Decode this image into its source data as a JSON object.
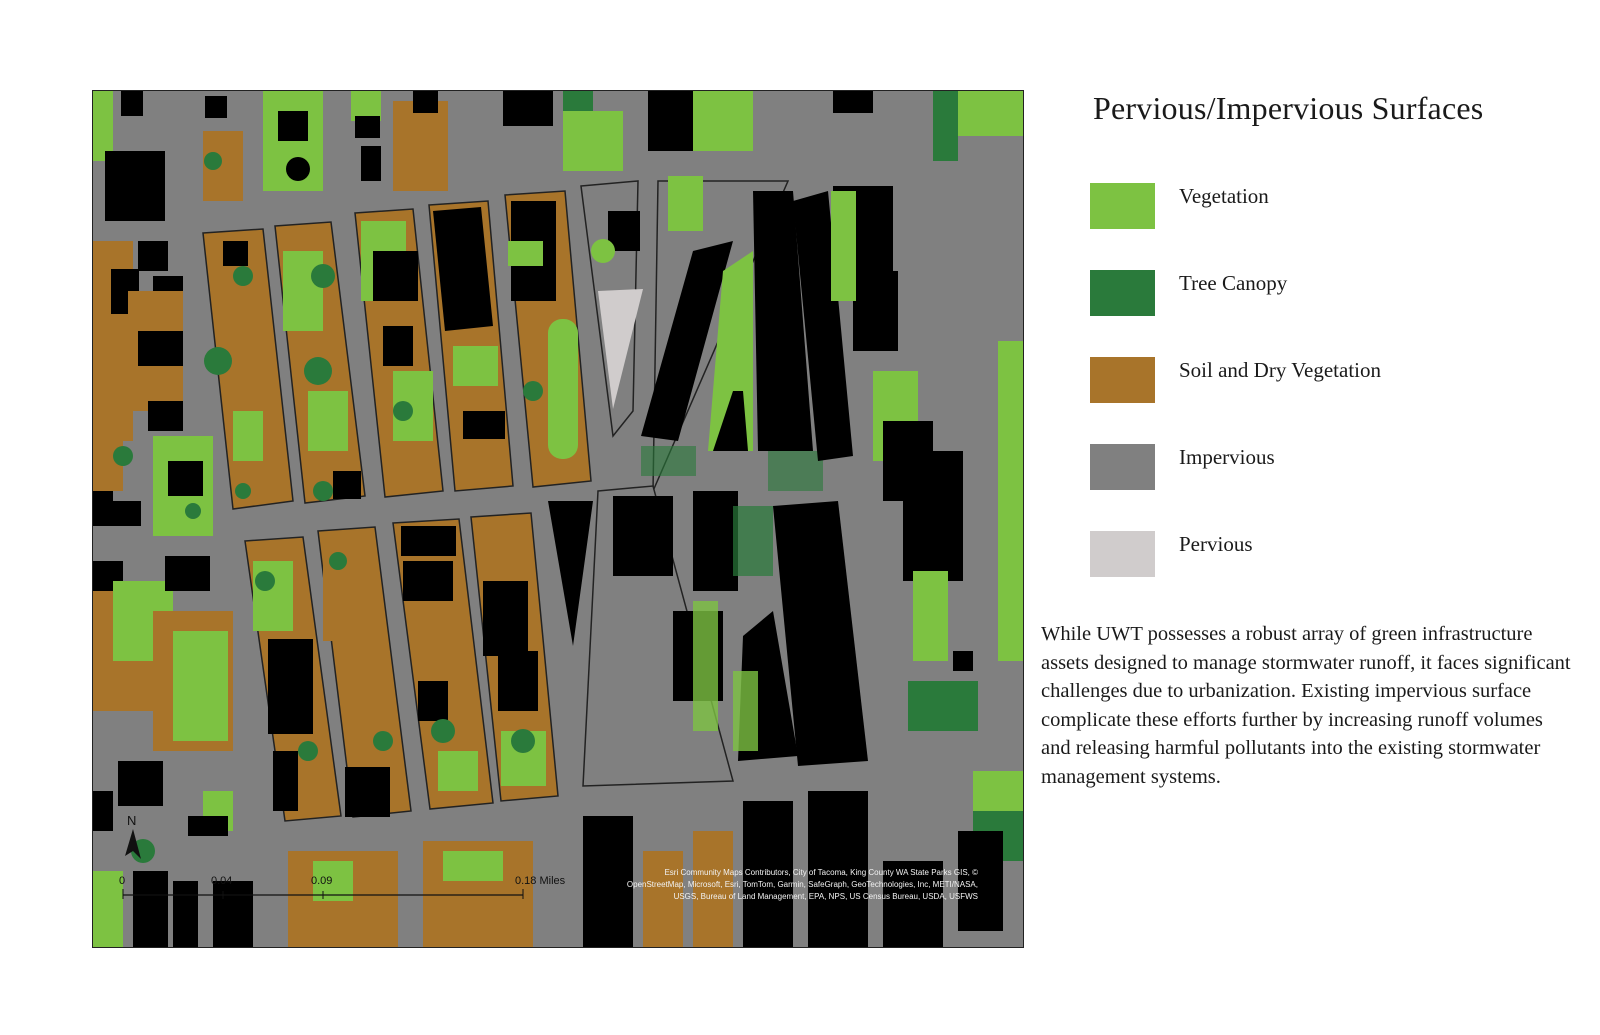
{
  "legend": {
    "title": "Pervious/Impervious Surfaces",
    "items": [
      {
        "label": "Vegetation",
        "color": "#7dc242"
      },
      {
        "label": "Tree Canopy",
        "color": "#2a7a3b"
      },
      {
        "label": "Soil and Dry Vegetation",
        "color": "#a8742a"
      },
      {
        "label": "Impervious",
        "color": "#808080"
      },
      {
        "label": "Pervious",
        "color": "#d0cccc"
      }
    ]
  },
  "description": "While UWT possesses a robust array of green infrastructure assets designed to manage stormwater runoff, it faces significant challenges due to urbanization. Existing impervious surface complicate these efforts further by increasing runoff volumes and releasing harmful pollutants into the existing stormwater management systems.",
  "map": {
    "north_label": "N",
    "scale_labels": [
      "0",
      "0.04",
      "0.09",
      "0.18 Miles"
    ],
    "attribution": [
      "Esri Community Maps Contributors, City of Tacoma, King County WA State Parks GIS, ©",
      "OpenStreetMap, Microsoft, Esri, TomTom, Garmin, SafeGraph, GeoTechnologies, Inc, METI/NASA,",
      "USGS, Bureau of Land Management, EPA, NPS, US Census Bureau, USDA, USFWS"
    ],
    "colors": {
      "building": "#000000",
      "road": "#808080",
      "vegetation": "#7dc242",
      "tree": "#2a7a3b",
      "soil": "#a8742a",
      "pervious": "#d0cccc"
    }
  }
}
